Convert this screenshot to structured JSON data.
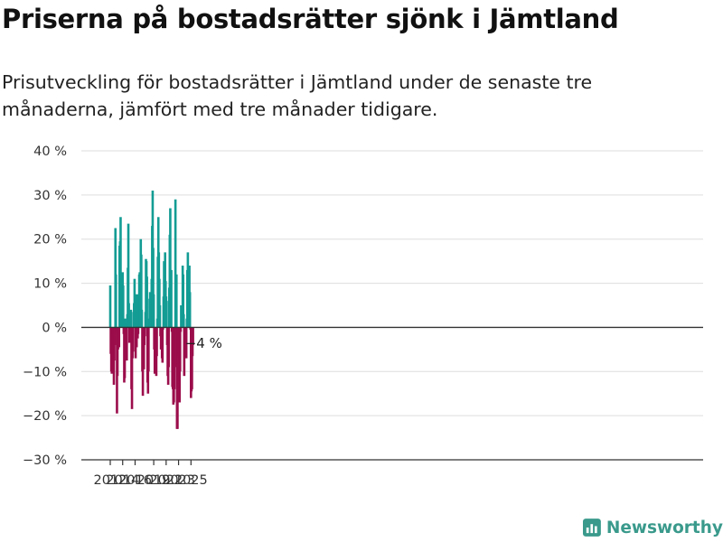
{
  "title": "Priserna på bostadsrätter sjönk i Jämtland",
  "subtitle": "Prisutveckling för bostadsrätter i Jämtland under de senaste tre månaderna, jämfört med tre månader tidigare.",
  "brand": "Newsworthy",
  "colors": {
    "positive": "#139c94",
    "negative": "#9b0d4b",
    "grid": "#dddddd",
    "zero_line": "#333333",
    "brand": "#3a9a8c"
  },
  "chart_data": {
    "type": "bar",
    "x_unit": "month",
    "x_start": "2012-01",
    "x_end": "2025-07",
    "ylim": [
      -30,
      40
    ],
    "yticks": [
      -30,
      -20,
      -10,
      0,
      10,
      20,
      30,
      40
    ],
    "ytick_labels": [
      "−30 %",
      "−20 %",
      "−10 %",
      "0 %",
      "10 %",
      "20 %",
      "30 %",
      "40 %"
    ],
    "xtick_labels": [
      "2012",
      "2014",
      "2016",
      "2019",
      "2021",
      "2023",
      "2025"
    ],
    "xtick_positions": [
      "2012-01",
      "2014-01",
      "2016-01",
      "2019-01",
      "2021-01",
      "2023-01",
      "2025-01"
    ],
    "grid": true,
    "annotation": {
      "text": "−4 %",
      "date": "2025-07",
      "value": -4
    },
    "values": [
      {
        "date": "2012-01",
        "value": 9.5
      },
      {
        "date": "2012-02",
        "value": -6
      },
      {
        "date": "2012-03",
        "value": -10
      },
      {
        "date": "2012-04",
        "value": -10.5
      },
      {
        "date": "2012-05",
        "value": -4
      },
      {
        "date": "2012-06",
        "value": -1.5
      },
      {
        "date": "2012-07",
        "value": -9
      },
      {
        "date": "2012-08",
        "value": -13
      },
      {
        "date": "2012-09",
        "value": -7.5
      },
      {
        "date": "2012-10",
        "value": -4
      },
      {
        "date": "2012-11",
        "value": 22.5
      },
      {
        "date": "2012-12",
        "value": 12
      },
      {
        "date": "2013-01",
        "value": -1
      },
      {
        "date": "2013-02",
        "value": -19.5
      },
      {
        "date": "2013-03",
        "value": -11
      },
      {
        "date": "2013-04",
        "value": -5
      },
      {
        "date": "2013-05",
        "value": -2.5
      },
      {
        "date": "2013-06",
        "value": -4.5
      },
      {
        "date": "2013-07",
        "value": 18.5
      },
      {
        "date": "2013-08",
        "value": 19.5
      },
      {
        "date": "2013-09",
        "value": 25
      },
      {
        "date": "2013-10",
        "value": 0.5
      },
      {
        "date": "2013-11",
        "value": 1
      },
      {
        "date": "2013-12",
        "value": 2
      },
      {
        "date": "2014-01",
        "value": 12.5
      },
      {
        "date": "2014-02",
        "value": 9.5
      },
      {
        "date": "2014-03",
        "value": -1.5
      },
      {
        "date": "2014-04",
        "value": -12.5
      },
      {
        "date": "2014-05",
        "value": -11.5
      },
      {
        "date": "2014-06",
        "value": 2
      },
      {
        "date": "2014-07",
        "value": -7.5
      },
      {
        "date": "2014-08",
        "value": 1
      },
      {
        "date": "2014-09",
        "value": -7.5
      },
      {
        "date": "2014-10",
        "value": 3
      },
      {
        "date": "2014-11",
        "value": 13.5
      },
      {
        "date": "2014-12",
        "value": 23.5
      },
      {
        "date": "2015-01",
        "value": 5.5
      },
      {
        "date": "2015-02",
        "value": -3.5
      },
      {
        "date": "2015-03",
        "value": 1.5
      },
      {
        "date": "2015-04",
        "value": 2.5
      },
      {
        "date": "2015-05",
        "value": 4
      },
      {
        "date": "2015-06",
        "value": -14
      },
      {
        "date": "2015-07",
        "value": -18.5
      },
      {
        "date": "2015-08",
        "value": -7
      },
      {
        "date": "2015-09",
        "value": -5.5
      },
      {
        "date": "2015-10",
        "value": 3.5
      },
      {
        "date": "2015-11",
        "value": 5.5
      },
      {
        "date": "2015-12",
        "value": 11
      },
      {
        "date": "2016-01",
        "value": 7.5
      },
      {
        "date": "2016-02",
        "value": -7
      },
      {
        "date": "2016-03",
        "value": -2
      },
      {
        "date": "2016-04",
        "value": -4.5
      },
      {
        "date": "2016-05",
        "value": 7.5
      },
      {
        "date": "2016-06",
        "value": -2.5
      },
      {
        "date": "2016-07",
        "value": -1.5
      },
      {
        "date": "2016-08",
        "value": 4
      },
      {
        "date": "2016-09",
        "value": 12
      },
      {
        "date": "2016-10",
        "value": 12.5
      },
      {
        "date": "2016-11",
        "value": 9
      },
      {
        "date": "2016-12",
        "value": 20
      },
      {
        "date": "2017-01",
        "value": 16.5
      },
      {
        "date": "2017-02",
        "value": 4
      },
      {
        "date": "2017-03",
        "value": -10
      },
      {
        "date": "2017-04",
        "value": -15.5
      },
      {
        "date": "2017-05",
        "value": -5
      },
      {
        "date": "2017-06",
        "value": -9.5
      },
      {
        "date": "2017-07",
        "value": -4
      },
      {
        "date": "2017-08",
        "value": -2
      },
      {
        "date": "2017-09",
        "value": 3.5
      },
      {
        "date": "2017-10",
        "value": 15.5
      },
      {
        "date": "2017-11",
        "value": 15
      },
      {
        "date": "2017-12",
        "value": 11.5
      },
      {
        "date": "2018-01",
        "value": -12.5
      },
      {
        "date": "2018-02",
        "value": -15
      },
      {
        "date": "2018-03",
        "value": -10
      },
      {
        "date": "2018-04",
        "value": 2
      },
      {
        "date": "2018-05",
        "value": 6.5
      },
      {
        "date": "2018-06",
        "value": 8
      },
      {
        "date": "2018-07",
        "value": 3.5
      },
      {
        "date": "2018-08",
        "value": 5
      },
      {
        "date": "2018-09",
        "value": 11
      },
      {
        "date": "2018-10",
        "value": 23
      },
      {
        "date": "2018-11",
        "value": 31
      },
      {
        "date": "2018-12",
        "value": 18
      },
      {
        "date": "2019-01",
        "value": 7.5
      },
      {
        "date": "2019-02",
        "value": -5
      },
      {
        "date": "2019-03",
        "value": -10.5
      },
      {
        "date": "2019-04",
        "value": -8
      },
      {
        "date": "2019-05",
        "value": -10
      },
      {
        "date": "2019-06",
        "value": -11
      },
      {
        "date": "2019-07",
        "value": -6.5
      },
      {
        "date": "2019-08",
        "value": 2
      },
      {
        "date": "2019-09",
        "value": 16
      },
      {
        "date": "2019-10",
        "value": 25
      },
      {
        "date": "2019-11",
        "value": 17
      },
      {
        "date": "2019-12",
        "value": 11
      },
      {
        "date": "2020-01",
        "value": 5
      },
      {
        "date": "2020-02",
        "value": -2
      },
      {
        "date": "2020-03",
        "value": -5
      },
      {
        "date": "2020-04",
        "value": -3
      },
      {
        "date": "2020-05",
        "value": -7
      },
      {
        "date": "2020-06",
        "value": -8
      },
      {
        "date": "2020-07",
        "value": -0.5
      },
      {
        "date": "2020-08",
        "value": 7
      },
      {
        "date": "2020-09",
        "value": 15
      },
      {
        "date": "2020-10",
        "value": 14
      },
      {
        "date": "2020-11",
        "value": 17
      },
      {
        "date": "2020-12",
        "value": 10.5
      },
      {
        "date": "2021-01",
        "value": 7
      },
      {
        "date": "2021-02",
        "value": 6
      },
      {
        "date": "2021-03",
        "value": -4
      },
      {
        "date": "2021-04",
        "value": -11
      },
      {
        "date": "2021-05",
        "value": -13
      },
      {
        "date": "2021-06",
        "value": -9
      },
      {
        "date": "2021-07",
        "value": 9
      },
      {
        "date": "2021-08",
        "value": 21
      },
      {
        "date": "2021-09",
        "value": 27
      },
      {
        "date": "2021-10",
        "value": 12
      },
      {
        "date": "2021-11",
        "value": 13
      },
      {
        "date": "2021-12",
        "value": -1
      },
      {
        "date": "2022-01",
        "value": -13.5
      },
      {
        "date": "2022-02",
        "value": -14
      },
      {
        "date": "2022-03",
        "value": -17.5
      },
      {
        "date": "2022-04",
        "value": -17
      },
      {
        "date": "2022-05",
        "value": -14
      },
      {
        "date": "2022-06",
        "value": -9
      },
      {
        "date": "2022-07",
        "value": 29
      },
      {
        "date": "2022-08",
        "value": -0.5
      },
      {
        "date": "2022-09",
        "value": 12
      },
      {
        "date": "2022-10",
        "value": -23
      },
      {
        "date": "2022-11",
        "value": -23
      },
      {
        "date": "2022-12",
        "value": -16
      },
      {
        "date": "2023-01",
        "value": -2
      },
      {
        "date": "2023-02",
        "value": -6.5
      },
      {
        "date": "2023-03",
        "value": -17
      },
      {
        "date": "2023-04",
        "value": -10
      },
      {
        "date": "2023-05",
        "value": -1
      },
      {
        "date": "2023-06",
        "value": 5
      },
      {
        "date": "2023-07",
        "value": 3
      },
      {
        "date": "2023-08",
        "value": 4
      },
      {
        "date": "2023-09",
        "value": 14
      },
      {
        "date": "2023-10",
        "value": 12
      },
      {
        "date": "2023-11",
        "value": 3
      },
      {
        "date": "2023-12",
        "value": -11
      },
      {
        "date": "2024-01",
        "value": -3.5
      },
      {
        "date": "2024-02",
        "value": -4.5
      },
      {
        "date": "2024-03",
        "value": -5.5
      },
      {
        "date": "2024-04",
        "value": -7
      },
      {
        "date": "2024-05",
        "value": 2
      },
      {
        "date": "2024-06",
        "value": 13
      },
      {
        "date": "2024-07",
        "value": 17
      },
      {
        "date": "2024-08",
        "value": 9
      },
      {
        "date": "2024-09",
        "value": 8
      },
      {
        "date": "2024-10",
        "value": 14
      },
      {
        "date": "2024-11",
        "value": 8
      },
      {
        "date": "2024-12",
        "value": -0.5
      },
      {
        "date": "2025-01",
        "value": -16
      },
      {
        "date": "2025-02",
        "value": -14.5
      },
      {
        "date": "2025-03",
        "value": -14
      },
      {
        "date": "2025-04",
        "value": -6.5
      },
      {
        "date": "2025-05",
        "value": -4
      }
    ]
  }
}
